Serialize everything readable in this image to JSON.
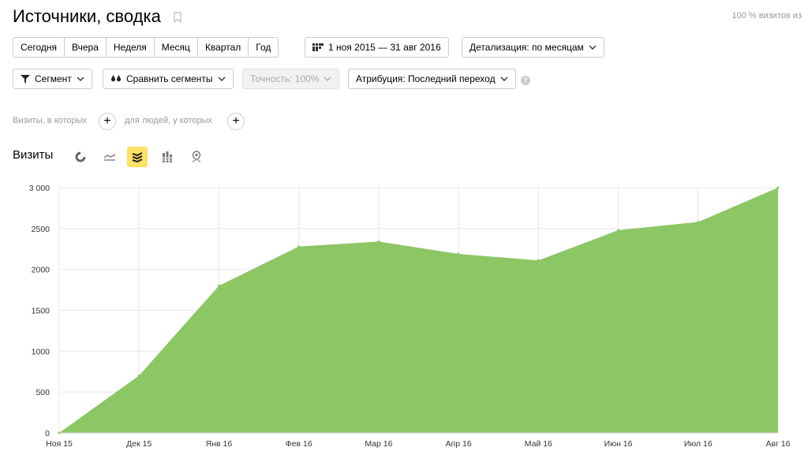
{
  "header": {
    "title": "Источники, сводка",
    "visit_percent": "100 % визитов из"
  },
  "period_tabs": [
    "Сегодня",
    "Вчера",
    "Неделя",
    "Месяц",
    "Квартал",
    "Год"
  ],
  "date_range": "1 ноя 2015 — 31 авг 2016",
  "detalization": "Детализация: по месяцам",
  "toolbar": {
    "segment": "Сегмент",
    "compare": "Сравнить сегменты",
    "accuracy": "Точность: 100%",
    "attribution": "Атрибуция: Последний переход"
  },
  "conditions": {
    "visits_where": "Визиты, в которых",
    "people_where": "для людей, у которых"
  },
  "chart_section": {
    "title": "Визиты",
    "chart_types": [
      "pie-icon",
      "line-icon",
      "stacked-area-icon",
      "bar-icon",
      "map-icon"
    ],
    "active_type": "stacked-area-icon"
  },
  "colors": {
    "area_fill": "#8cc665",
    "grid": "#e8e8e8",
    "active_type_bg": "#ffe066"
  },
  "chart_data": {
    "type": "area",
    "x": [
      "Ноя 15",
      "Дек 15",
      "Янв 16",
      "Фев 16",
      "Мар 16",
      "Апр 16",
      "Май 16",
      "Июн 16",
      "Июл 16",
      "Авг 16"
    ],
    "series": [
      {
        "values": [
          0,
          700,
          1800,
          2280,
          2340,
          2190,
          2110,
          2480,
          2580,
          3000
        ]
      }
    ],
    "yticks": [
      0,
      500,
      1000,
      1500,
      2000,
      2500,
      3000
    ],
    "ytick_labels": [
      "0",
      "500",
      "1000",
      "1500",
      "2000",
      "2500",
      "3 000"
    ],
    "ylim": [
      0,
      3000
    ],
    "grid": true
  }
}
